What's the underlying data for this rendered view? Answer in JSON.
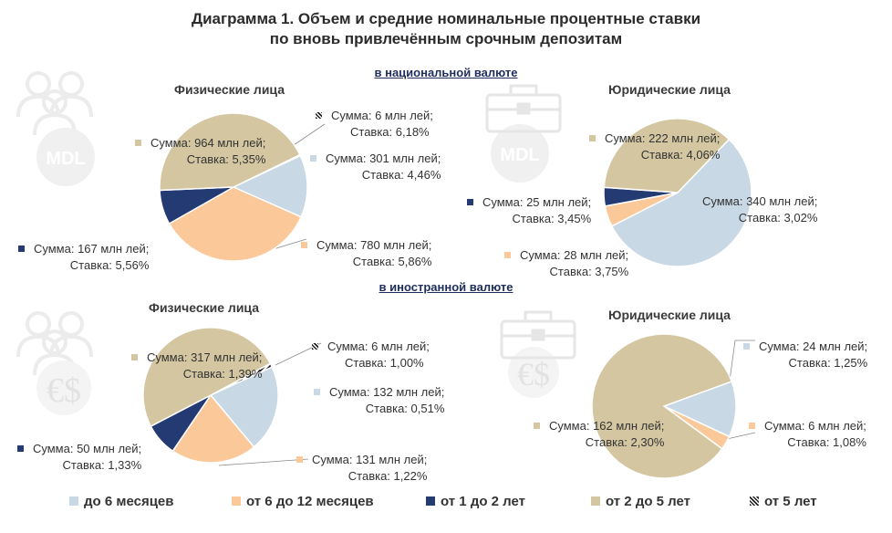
{
  "title_line1": "Диаграмма 1. Объем и средние номинальные процентные ставки",
  "title_line2": "по вновь привлечённым срочным депозитам",
  "section_national": "в национальной валюте",
  "section_foreign": "в иностранной валюте",
  "icons": {
    "people": "people-icon",
    "briefcase": "briefcase-icon",
    "mdl_coin": "MDL",
    "currency": "€$"
  },
  "colors": {
    "lt6m": "#c8d8e4",
    "m6_12": "#fbc999",
    "y1_2": "#233a73",
    "y2_5": "#d3c6a0",
    "gt5": "#222222"
  },
  "legend": [
    {
      "key": "lt6m",
      "label": "до 6 месяцев"
    },
    {
      "key": "m6_12",
      "label": "от 6 до 12 месяцев"
    },
    {
      "key": "y1_2",
      "label": "от 1 до 2 лет"
    },
    {
      "key": "y2_5",
      "label": "от 2 до 5 лет"
    },
    {
      "key": "gt5",
      "label": "от 5 лет"
    }
  ],
  "chart_data": [
    {
      "type": "pie",
      "title": "Физические лица",
      "currency": "в национальной валюте",
      "slices": [
        {
          "key": "gt5",
          "sum": "Сумма:  6 млн лей;",
          "rate": "Ставка: 6,18%",
          "value": 6,
          "rate_pct": 6.18
        },
        {
          "key": "lt6m",
          "sum": "Сумма:  301 млн лей;",
          "rate": "Ставка: 4,46%",
          "value": 301,
          "rate_pct": 4.46
        },
        {
          "key": "m6_12",
          "sum": "Сумма:  780 млн лей;",
          "rate": "Ставка: 5,86%",
          "value": 780,
          "rate_pct": 5.86
        },
        {
          "key": "y1_2",
          "sum": "Сумма:  167 млн лей;",
          "rate": "Ставка: 5,56%",
          "value": 167,
          "rate_pct": 5.56
        },
        {
          "key": "y2_5",
          "sum": "Сумма:  964 млн лей;",
          "rate": "Ставка: 5,35%",
          "value": 964,
          "rate_pct": 5.35
        }
      ]
    },
    {
      "type": "pie",
      "title": "Юридические лица",
      "currency": "в национальной валюте",
      "slices": [
        {
          "key": "lt6m",
          "sum": "Сумма:  340 млн лей;",
          "rate": "Ставка: 3,02%",
          "value": 340,
          "rate_pct": 3.02
        },
        {
          "key": "m6_12",
          "sum": "Сумма:  28 млн лей;",
          "rate": "Ставка: 3,75%",
          "value": 28,
          "rate_pct": 3.75
        },
        {
          "key": "y1_2",
          "sum": "Сумма:  25 млн лей;",
          "rate": "Ставка: 3,45%",
          "value": 25,
          "rate_pct": 3.45
        },
        {
          "key": "y2_5",
          "sum": "Сумма:  222 млн лей;",
          "rate": "Ставка: 4,06%",
          "value": 222,
          "rate_pct": 4.06
        }
      ]
    },
    {
      "type": "pie",
      "title": "Физические лица",
      "currency": "в иностранной валюте",
      "slices": [
        {
          "key": "gt5",
          "sum": "Сумма:  6 млн лей;",
          "rate": "Ставка: 1,00%",
          "value": 6,
          "rate_pct": 1.0
        },
        {
          "key": "lt6m",
          "sum": "Сумма:  132 млн лей;",
          "rate": "Ставка: 0,51%",
          "value": 132,
          "rate_pct": 0.51
        },
        {
          "key": "m6_12",
          "sum": "Сумма:  131 млн лей;",
          "rate": "Ставка: 1,22%",
          "value": 131,
          "rate_pct": 1.22
        },
        {
          "key": "y1_2",
          "sum": "Сумма:  50 млн лей;",
          "rate": "Ставка: 1,33%",
          "value": 50,
          "rate_pct": 1.33
        },
        {
          "key": "y2_5",
          "sum": "Сумма:  317 млн лей;",
          "rate": "Ставка: 1,39%",
          "value": 317,
          "rate_pct": 1.39
        }
      ]
    },
    {
      "type": "pie",
      "title": "Юридические лица",
      "currency": "в иностранной валюте",
      "slices": [
        {
          "key": "lt6m",
          "sum": "Сумма:  24 млн лей;",
          "rate": "Ставка: 1,25%",
          "value": 24,
          "rate_pct": 1.25
        },
        {
          "key": "m6_12",
          "sum": "Сумма:  6 млн лей;",
          "rate": "Ставка: 1,08%",
          "value": 6,
          "rate_pct": 1.08
        },
        {
          "key": "y2_5",
          "sum": "Сумма:  162 млн лей;",
          "rate": "Ставка: 2,30%",
          "value": 162,
          "rate_pct": 2.3
        }
      ]
    }
  ]
}
